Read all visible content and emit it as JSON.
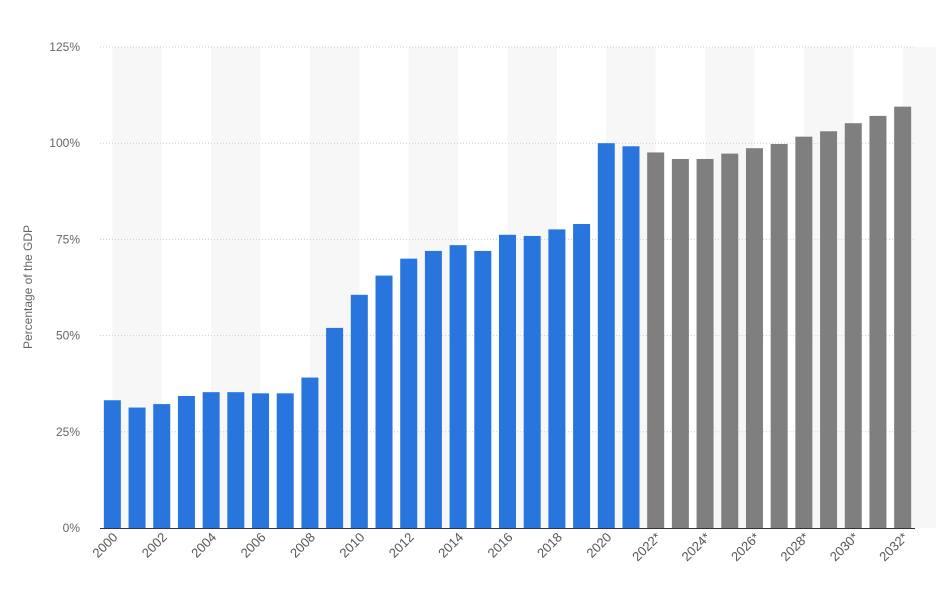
{
  "chart_data": {
    "type": "bar",
    "ylabel": "Percentage of the GDP",
    "xlabel": "",
    "ylim": [
      0,
      125
    ],
    "y_ticks": [
      "0%",
      "25%",
      "50%",
      "75%",
      "100%",
      "125%"
    ],
    "y_tick_values": [
      0,
      25,
      50,
      75,
      100,
      125
    ],
    "grid": "horizontal dotted",
    "categories": [
      "2000",
      "2001",
      "2002",
      "2003",
      "2004",
      "2005",
      "2006",
      "2007",
      "2008",
      "2009",
      "2010",
      "2011",
      "2012",
      "2013",
      "2014",
      "2015",
      "2016",
      "2017",
      "2018",
      "2019",
      "2020",
      "2021",
      "2022*",
      "2023*",
      "2024*",
      "2025*",
      "2026*",
      "2027*",
      "2028*",
      "2029*",
      "2030*",
      "2031*",
      "2032*"
    ],
    "x_tick_labels_shown": [
      "2000",
      "2002",
      "2004",
      "2006",
      "2008",
      "2010",
      "2012",
      "2014",
      "2016",
      "2018",
      "2020",
      "2022*",
      "2024*",
      "2026*",
      "2028*",
      "2030*",
      "2032*"
    ],
    "series": [
      {
        "name": "",
        "values": [
          33.2,
          31.3,
          32.2,
          34.3,
          35.3,
          35.3,
          35.0,
          35.0,
          39.1,
          52.0,
          60.6,
          65.6,
          70.0,
          72.0,
          73.5,
          72.0,
          76.2,
          75.9,
          77.6,
          79.0,
          100.0,
          99.2,
          97.6,
          95.9,
          95.9,
          97.3,
          98.7,
          99.8,
          101.7,
          103.1,
          105.2,
          107.1,
          109.5
        ],
        "colors_by_status": {
          "actual": "#2876dd",
          "forecast": "#7f7f7f"
        },
        "forecast_from_index": 22
      }
    ],
    "band_color": "#f7f7f7",
    "axis_color": "#333333",
    "grid_color": "#cccccc"
  }
}
